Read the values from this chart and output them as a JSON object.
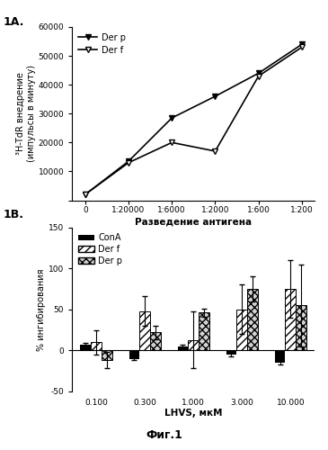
{
  "fig1a": {
    "x_labels": [
      "0",
      "1:20000",
      "1:6000",
      "1:2000",
      "1:600",
      "1:200"
    ],
    "x_values": [
      0,
      1,
      2,
      3,
      4,
      5
    ],
    "der_p_y": [
      2000,
      13500,
      28500,
      36000,
      44000,
      54000
    ],
    "der_f_y": [
      2000,
      13000,
      20000,
      17000,
      43000,
      53000
    ],
    "ylabel": "³H-TdR внедрение\n(импульсы в минуту)",
    "xlabel": "Разведение антигена",
    "ylim": [
      0,
      60000
    ],
    "yticks": [
      0,
      10000,
      20000,
      30000,
      40000,
      50000,
      60000
    ],
    "legend_der_p": "Der p",
    "legend_der_f": "Der f"
  },
  "fig1b": {
    "x_labels": [
      "0.100",
      "0.300",
      "1.000",
      "3.000",
      "10.000"
    ],
    "x_positions": [
      0,
      1,
      2,
      3,
      4
    ],
    "ylabel": "% ингибирования",
    "xlabel": "LHVS, мкМ",
    "ylim": [
      -50,
      150
    ],
    "yticks": [
      -50,
      0,
      50,
      100,
      150
    ],
    "cona_values": [
      7,
      -10,
      5,
      -5,
      -15
    ],
    "derf_values": [
      10,
      48,
      13,
      50,
      75
    ],
    "derp_values": [
      -12,
      22,
      46,
      75,
      55
    ],
    "cona_err": [
      2,
      2,
      2,
      2,
      2
    ],
    "derf_err": [
      15,
      18,
      35,
      30,
      35
    ],
    "derp_err": [
      10,
      8,
      5,
      15,
      50
    ],
    "legend_cona": "ConA",
    "legend_derf": "Der f",
    "legend_derp": "Der p",
    "bar_width": 0.22,
    "fig_title": "Фиг.1"
  },
  "background_color": "#ffffff"
}
